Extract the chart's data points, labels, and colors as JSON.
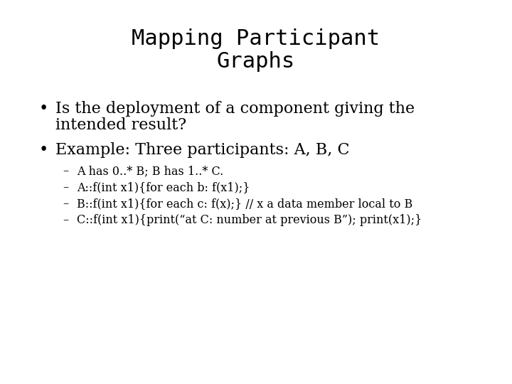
{
  "title_line1": "Mapping Participant",
  "title_line2": "Graphs",
  "background_color": "#ffffff",
  "text_color": "#000000",
  "title_font": "monospace",
  "title_fontsize": 22,
  "bullet_font": "DejaVu Serif",
  "bullet_fontsize": 16,
  "sub_bullet_fontsize": 11.5,
  "bullets": [
    "Is the deployment of a component giving the\nintended result?",
    "Example: Three participants: A, B, C"
  ],
  "sub_bullets": [
    "A has 0..* B; B has 1..* C.",
    "A::f(int x1){for each b: f(x1);}",
    "B::f(int x1){for each c: f(x);} // x a data member local to B",
    "C::f(int x1){print(“at C: number at previous B”); print(x1);}"
  ]
}
